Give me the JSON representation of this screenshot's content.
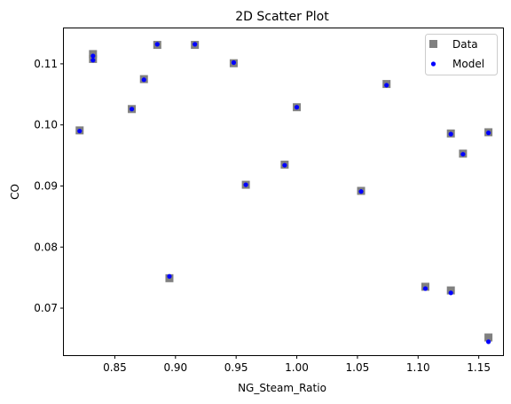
{
  "chart_data": {
    "type": "scatter",
    "title": "2D Scatter Plot",
    "xlabel": "NG_Steam_Ratio",
    "ylabel": "CO",
    "xlim": [
      0.808,
      1.17
    ],
    "ylim": [
      0.0623,
      0.1158
    ],
    "xticks": [
      0.85,
      0.9,
      0.95,
      1.0,
      1.05,
      1.1,
      1.15
    ],
    "xtick_labels": [
      "0.85",
      "0.90",
      "0.95",
      "1.00",
      "1.05",
      "1.10",
      "1.15"
    ],
    "yticks": [
      0.07,
      0.08,
      0.09,
      0.1,
      0.11
    ],
    "ytick_labels": [
      "0.07",
      "0.08",
      "0.09",
      "0.10",
      "0.11"
    ],
    "grid": false,
    "legend_position": "top-right",
    "series": [
      {
        "name": "Data",
        "marker": "square",
        "color": "#808080",
        "x": [
          0.821,
          0.832,
          0.832,
          0.864,
          0.874,
          0.885,
          0.895,
          0.916,
          0.948,
          0.958,
          0.99,
          1.0,
          1.053,
          1.074,
          1.106,
          1.127,
          1.127,
          1.137,
          1.158,
          1.158
        ],
        "y": [
          0.0991,
          0.1116,
          0.1108,
          0.1026,
          0.1075,
          0.1131,
          0.0749,
          0.1131,
          0.1101,
          0.0902,
          0.0935,
          0.1029,
          0.0892,
          0.1067,
          0.0735,
          0.0729,
          0.0986,
          0.0953,
          0.0652,
          0.0988
        ]
      },
      {
        "name": "Model",
        "marker": "circle",
        "color": "#0000ff",
        "x": [
          0.821,
          0.832,
          0.832,
          0.864,
          0.874,
          0.885,
          0.895,
          0.916,
          0.948,
          0.958,
          0.99,
          1.0,
          1.053,
          1.074,
          1.106,
          1.127,
          1.127,
          1.137,
          1.158,
          1.158
        ],
        "y": [
          0.099,
          0.1113,
          0.1106,
          0.1026,
          0.1074,
          0.1132,
          0.0752,
          0.1132,
          0.1102,
          0.0902,
          0.0934,
          0.1029,
          0.0891,
          0.1065,
          0.0732,
          0.0725,
          0.0985,
          0.0952,
          0.0645,
          0.0987
        ]
      }
    ]
  }
}
